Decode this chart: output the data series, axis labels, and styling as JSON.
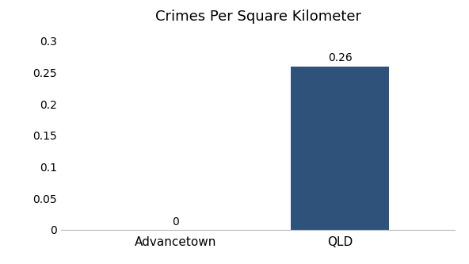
{
  "categories": [
    "Advancetown",
    "QLD"
  ],
  "values": [
    0,
    0.26
  ],
  "bar_colors": [
    "#2e527a",
    "#2e527a"
  ],
  "title": "Crimes Per Square Kilometer",
  "ylim": [
    0,
    0.315
  ],
  "yticks": [
    0,
    0.05,
    0.1,
    0.15,
    0.2,
    0.25,
    0.3
  ],
  "bar_labels": [
    "0",
    "0.26"
  ],
  "background_color": "#ffffff",
  "title_fontsize": 13,
  "tick_fontsize": 10,
  "label_fontsize": 11,
  "bar_width": 0.6
}
